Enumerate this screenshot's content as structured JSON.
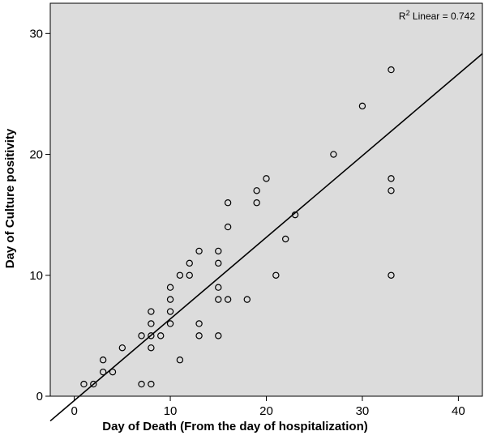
{
  "chart_data": {
    "type": "scatter",
    "title": "",
    "xlabel": "Day of Death (From the day of hospitalization)",
    "ylabel": "Day of Culture positivity",
    "xlim": [
      -2.5,
      42.5
    ],
    "ylim": [
      0,
      32.5
    ],
    "xticks": [
      0,
      10,
      20,
      30,
      40
    ],
    "yticks": [
      0,
      10,
      20,
      30
    ],
    "xtick_labels": [
      "0",
      "10",
      "20",
      "30",
      "40"
    ],
    "ytick_labels": [
      "0",
      "10",
      "20",
      "30"
    ],
    "grid": false,
    "background_color": "#dcdcdc",
    "marker": "open-circle",
    "fit_line": {
      "type": "linear",
      "intercept": -0.36,
      "slope": 0.675,
      "x_start": -2.5,
      "x_end": 42.5
    },
    "annotation": {
      "prefix": "R",
      "superscript": "2",
      "suffix": " Linear = 0.742"
    },
    "points": [
      {
        "x": 1,
        "y": 1
      },
      {
        "x": 2,
        "y": 1
      },
      {
        "x": 3,
        "y": 2
      },
      {
        "x": 3,
        "y": 3
      },
      {
        "x": 4,
        "y": 2
      },
      {
        "x": 5,
        "y": 4
      },
      {
        "x": 7,
        "y": 1
      },
      {
        "x": 7,
        "y": 5
      },
      {
        "x": 8,
        "y": 1
      },
      {
        "x": 8,
        "y": 4
      },
      {
        "x": 8,
        "y": 5
      },
      {
        "x": 8,
        "y": 6
      },
      {
        "x": 8,
        "y": 7
      },
      {
        "x": 9,
        "y": 5
      },
      {
        "x": 10,
        "y": 6
      },
      {
        "x": 10,
        "y": 7
      },
      {
        "x": 10,
        "y": 8
      },
      {
        "x": 10,
        "y": 9
      },
      {
        "x": 11,
        "y": 3
      },
      {
        "x": 11,
        "y": 10
      },
      {
        "x": 12,
        "y": 10
      },
      {
        "x": 12,
        "y": 11
      },
      {
        "x": 13,
        "y": 5
      },
      {
        "x": 13,
        "y": 6
      },
      {
        "x": 13,
        "y": 12
      },
      {
        "x": 15,
        "y": 5
      },
      {
        "x": 15,
        "y": 8
      },
      {
        "x": 15,
        "y": 9
      },
      {
        "x": 15,
        "y": 11
      },
      {
        "x": 15,
        "y": 12
      },
      {
        "x": 16,
        "y": 8
      },
      {
        "x": 16,
        "y": 14
      },
      {
        "x": 16,
        "y": 16
      },
      {
        "x": 18,
        "y": 8
      },
      {
        "x": 19,
        "y": 16
      },
      {
        "x": 19,
        "y": 17
      },
      {
        "x": 20,
        "y": 18
      },
      {
        "x": 21,
        "y": 10
      },
      {
        "x": 22,
        "y": 13
      },
      {
        "x": 23,
        "y": 15
      },
      {
        "x": 27,
        "y": 20
      },
      {
        "x": 30,
        "y": 24
      },
      {
        "x": 33,
        "y": 10
      },
      {
        "x": 33,
        "y": 17
      },
      {
        "x": 33,
        "y": 18
      },
      {
        "x": 33,
        "y": 27
      }
    ]
  }
}
